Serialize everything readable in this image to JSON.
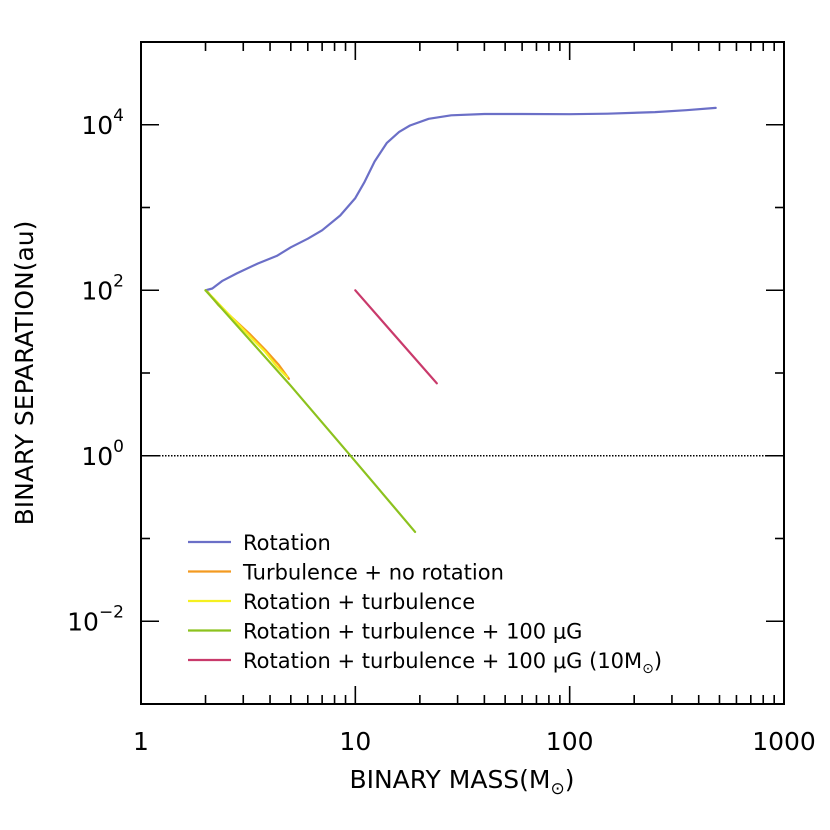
{
  "chart_data": {
    "type": "line",
    "x_scale": "log",
    "y_scale": "log",
    "xlim": [
      1,
      1000
    ],
    "ylim": [
      0.001,
      100000
    ],
    "xlabel": {
      "main": "BINARY MASS(M",
      "sub": "⊙",
      "end": ")"
    },
    "ylabel": "BINARY SEPARATION(au)",
    "x_ticks": [
      {
        "value": 1,
        "label": "1"
      },
      {
        "value": 10,
        "label": "10"
      },
      {
        "value": 100,
        "label": "100"
      },
      {
        "value": 1000,
        "label": "1000"
      }
    ],
    "y_ticks": [
      {
        "value": 0.01,
        "base": "10",
        "exp": "−2"
      },
      {
        "value": 1,
        "base": "10",
        "exp": "0"
      },
      {
        "value": 100,
        "base": "10",
        "exp": "2"
      },
      {
        "value": 10000,
        "base": "10",
        "exp": "4"
      }
    ],
    "reference_line": {
      "y": 1,
      "style": "dotted",
      "color": "#000000"
    },
    "series": [
      {
        "name": "Rotation",
        "legend_pre": "Rotation",
        "legend_sub": "",
        "legend_post": "",
        "color": "#6b6fc7",
        "x": [
          2.0,
          2.15,
          2.4,
          2.8,
          3.5,
          4.3,
          5.0,
          6.0,
          7.0,
          8.5,
          10.0,
          11.0,
          12.3,
          14.0,
          16.0,
          18.0,
          22.0,
          28.0,
          40.0,
          60.0,
          100.0,
          150.0,
          250.0,
          350.0,
          480.0
        ],
        "y": [
          100,
          105,
          130,
          160,
          210,
          260,
          330,
          420,
          530,
          800,
          1300,
          2000,
          3600,
          6000,
          8200,
          9800,
          11800,
          13000,
          13500,
          13500,
          13400,
          13600,
          14200,
          15000,
          16000
        ]
      },
      {
        "name": "Turbulence + no rotation",
        "legend_pre": "Turbulence + no rotation",
        "legend_sub": "",
        "legend_post": "",
        "color": "#f39a20",
        "x": [
          2.05,
          2.3,
          2.7,
          3.2,
          3.8,
          4.4,
          4.9
        ],
        "y": [
          95,
          66,
          45,
          30,
          19,
          12.5,
          8.5
        ]
      },
      {
        "name": "Rotation + turbulence",
        "legend_pre": "Rotation + turbulence",
        "legend_sub": "",
        "legend_post": "",
        "color": "#f5f020",
        "x": [
          2.0,
          2.2,
          2.5,
          2.9,
          3.3,
          3.8,
          4.3,
          4.8
        ],
        "y": [
          100,
          78,
          55,
          37,
          26,
          18,
          12,
          9
        ]
      },
      {
        "name": "Rotation + turbulence + 100 μG",
        "legend_pre": "Rotation + turbulence + 100 μG",
        "legend_sub": "",
        "legend_post": "",
        "color": "#8cc21e",
        "x": [
          2.0,
          5.0,
          9.5,
          19.0
        ],
        "y": [
          100,
          7.0,
          1.0,
          0.12
        ]
      },
      {
        "name": "Rotation + turbulence + 100 μG (10M⊙)",
        "legend_pre": "Rotation + turbulence + 100 μG (10M",
        "legend_sub": "⊙",
        "legend_post": "",
        "color": "#c93a6b",
        "x": [
          10.0,
          15.0,
          24.0
        ],
        "y": [
          100,
          30,
          7.5
        ]
      }
    ]
  }
}
